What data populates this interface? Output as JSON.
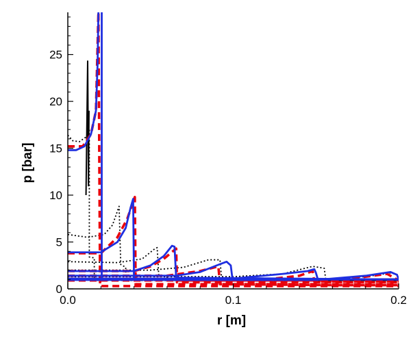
{
  "chart_data": {
    "type": "line",
    "title": "",
    "xlabel": "r [m]",
    "ylabel": "p [bar]",
    "xlim": [
      0,
      0.2
    ],
    "ylim": [
      0,
      29.5
    ],
    "x_ticks": [
      0.0,
      0.1,
      0.2
    ],
    "x_tick_labels": [
      "0.0",
      "0.1",
      "0.2"
    ],
    "y_ticks": [
      0,
      5,
      10,
      15,
      20,
      25
    ],
    "y_tick_labels": [
      "0",
      "5",
      "10",
      "15",
      "20",
      "25"
    ],
    "grid": false,
    "legend": "none",
    "series": [
      {
        "style": "dotted",
        "color": "#000000",
        "points": [
          [
            0,
            16.4
          ],
          [
            0.003,
            15.8
          ],
          [
            0.007,
            15.7
          ],
          [
            0.011,
            16.2
          ],
          [
            0.013,
            17
          ],
          [
            0.013,
            3.4
          ],
          [
            0.016,
            3.3
          ],
          [
            0.016,
            0.9
          ],
          [
            0.2,
            0.9
          ]
        ]
      },
      {
        "style": "dotted",
        "color": "#000000",
        "points": [
          [
            0,
            5.8
          ],
          [
            0.012,
            5.5
          ],
          [
            0.022,
            5.8
          ],
          [
            0.027,
            6.8
          ],
          [
            0.031,
            8.8
          ],
          [
            0.032,
            2.6
          ],
          [
            0.035,
            2.3
          ],
          [
            0.035,
            0.9
          ],
          [
            0.2,
            0.9
          ]
        ]
      },
      {
        "style": "dotted",
        "color": "#000000",
        "points": [
          [
            0,
            2.9
          ],
          [
            0.03,
            2.8
          ],
          [
            0.045,
            3.2
          ],
          [
            0.052,
            4.2
          ],
          [
            0.054,
            4.4
          ],
          [
            0.055,
            1.4
          ],
          [
            0.06,
            1.3
          ],
          [
            0.06,
            0.9
          ],
          [
            0.2,
            0.9
          ]
        ]
      },
      {
        "style": "dotted",
        "color": "#000000",
        "points": [
          [
            0,
            2.0
          ],
          [
            0.05,
            2.0
          ],
          [
            0.07,
            2.3
          ],
          [
            0.085,
            3.1
          ],
          [
            0.092,
            3.1
          ],
          [
            0.093,
            1.0
          ],
          [
            0.2,
            0.9
          ]
        ]
      },
      {
        "style": "dotted",
        "color": "#000000",
        "points": [
          [
            0,
            1.3
          ],
          [
            0.1,
            1.3
          ],
          [
            0.13,
            1.6
          ],
          [
            0.148,
            2.4
          ],
          [
            0.155,
            2.2
          ],
          [
            0.156,
            0.9
          ],
          [
            0.2,
            0.9
          ]
        ]
      },
      {
        "style": "dotted",
        "color": "#000000",
        "points": [
          [
            0,
            1.0
          ],
          [
            0.15,
            1.0
          ],
          [
            0.18,
            1.3
          ],
          [
            0.195,
            1.7
          ],
          [
            0.2,
            1.5
          ]
        ]
      },
      {
        "style": "solid",
        "color": "#000000",
        "points": [
          [
            0.011,
            10
          ],
          [
            0.012,
            24.3
          ],
          [
            0.0125,
            11
          ],
          [
            0.0128,
            19
          ]
        ]
      },
      {
        "style": "solid",
        "color": "#000000",
        "points": [
          [
            0,
            1.1
          ],
          [
            0.1,
            1.05
          ],
          [
            0.2,
            1.05
          ]
        ]
      },
      {
        "style": "dashed",
        "color": "#e8000b",
        "points": [
          [
            0,
            15.2
          ],
          [
            0.009,
            15.2
          ],
          [
            0.014,
            16.5
          ],
          [
            0.017,
            19
          ],
          [
            0.0185,
            29.5
          ],
          [
            0.0195,
            0.3
          ],
          [
            0.2,
            0.3
          ]
        ]
      },
      {
        "style": "dashed",
        "color": "#e8000b",
        "points": [
          [
            0,
            3.8
          ],
          [
            0.02,
            3.8
          ],
          [
            0.03,
            5.5
          ],
          [
            0.036,
            7.5
          ],
          [
            0.0405,
            9.8
          ],
          [
            0.041,
            0.5
          ],
          [
            0.2,
            0.5
          ]
        ]
      },
      {
        "style": "dashed",
        "color": "#e8000b",
        "points": [
          [
            0,
            1.9
          ],
          [
            0.04,
            1.9
          ],
          [
            0.05,
            2.4
          ],
          [
            0.058,
            3.2
          ],
          [
            0.0655,
            4.3
          ],
          [
            0.066,
            0.7
          ],
          [
            0.2,
            0.7
          ]
        ]
      },
      {
        "style": "dashed",
        "color": "#e8000b",
        "points": [
          [
            0,
            1.4
          ],
          [
            0.06,
            1.4
          ],
          [
            0.08,
            1.9
          ],
          [
            0.091,
            2.4
          ],
          [
            0.092,
            0.5
          ],
          [
            0.16,
            0.4
          ],
          [
            0.2,
            0.4
          ]
        ]
      },
      {
        "style": "dashed",
        "color": "#e8000b",
        "points": [
          [
            0,
            1.0
          ],
          [
            0.12,
            1.0
          ],
          [
            0.14,
            1.4
          ],
          [
            0.148,
            1.9
          ],
          [
            0.149,
            0.8
          ],
          [
            0.2,
            0.8
          ]
        ]
      },
      {
        "style": "dashed",
        "color": "#e8000b",
        "points": [
          [
            0,
            0.9
          ],
          [
            0.16,
            0.9
          ],
          [
            0.18,
            1.3
          ],
          [
            0.193,
            1.6
          ],
          [
            0.2,
            0.9
          ]
        ]
      },
      {
        "style": "solid",
        "color": "#1f2fe0",
        "points": [
          [
            0,
            14.8
          ],
          [
            0.005,
            14.8
          ],
          [
            0.01,
            15.2
          ],
          [
            0.014,
            16.5
          ],
          [
            0.017,
            19
          ],
          [
            0.018,
            24
          ],
          [
            0.0185,
            29.5
          ]
        ]
      },
      {
        "style": "solid",
        "color": "#1f2fe0",
        "points": [
          [
            0.0205,
            29.5
          ],
          [
            0.0205,
            1.0
          ],
          [
            0.2,
            1.0
          ]
        ]
      },
      {
        "style": "solid",
        "color": "#1f2fe0",
        "points": [
          [
            0,
            3.9
          ],
          [
            0.02,
            3.9
          ],
          [
            0.03,
            5.0
          ],
          [
            0.035,
            6.5
          ],
          [
            0.038,
            8.7
          ],
          [
            0.0395,
            9.6
          ],
          [
            0.04,
            1.0
          ]
        ]
      },
      {
        "style": "solid",
        "color": "#1f2fe0",
        "points": [
          [
            0,
            1.9
          ],
          [
            0.04,
            1.9
          ],
          [
            0.05,
            2.5
          ],
          [
            0.058,
            3.5
          ],
          [
            0.063,
            4.6
          ],
          [
            0.0645,
            4.5
          ],
          [
            0.0655,
            1.2
          ],
          [
            0.2,
            1.0
          ]
        ]
      },
      {
        "style": "solid",
        "color": "#1f2fe0",
        "points": [
          [
            0,
            1.4
          ],
          [
            0.065,
            1.4
          ],
          [
            0.08,
            1.8
          ],
          [
            0.09,
            2.5
          ],
          [
            0.096,
            2.9
          ],
          [
            0.0985,
            2.5
          ],
          [
            0.0995,
            1.1
          ]
        ]
      },
      {
        "style": "solid",
        "color": "#1f2fe0",
        "points": [
          [
            0,
            1.1
          ],
          [
            0.1,
            1.1
          ],
          [
            0.13,
            1.6
          ],
          [
            0.145,
            1.9
          ],
          [
            0.149,
            2.1
          ],
          [
            0.15,
            1.7
          ],
          [
            0.151,
            1.1
          ]
        ]
      },
      {
        "style": "solid",
        "color": "#1f2fe0",
        "points": [
          [
            0,
            0.95
          ],
          [
            0.15,
            0.95
          ],
          [
            0.18,
            1.4
          ],
          [
            0.195,
            1.8
          ],
          [
            0.199,
            1.5
          ],
          [
            0.2,
            1.0
          ]
        ]
      }
    ]
  }
}
